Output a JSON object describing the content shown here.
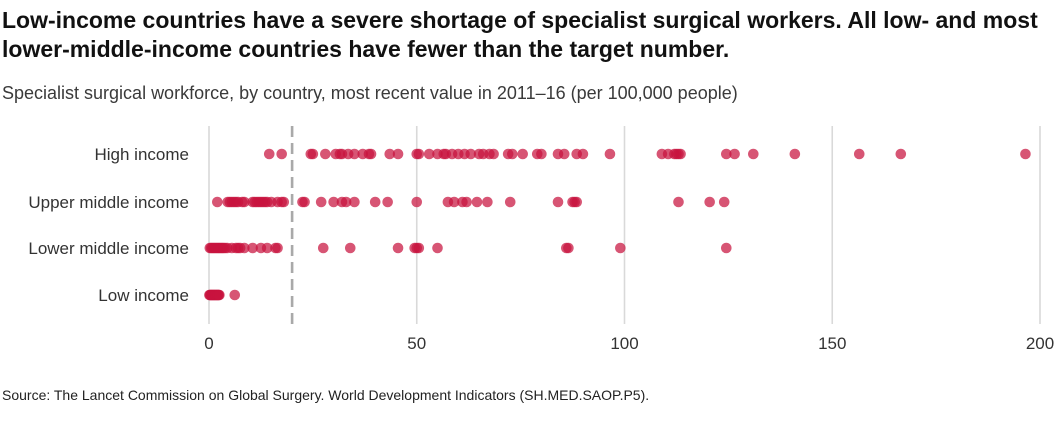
{
  "title": "Low-income countries have a severe shortage of specialist surgical workers. All low- and most lower-middle-income countries have fewer than the target number.",
  "subtitle": "Specialist surgical workforce, by country, most recent value in 2011–16 (per 100,000 people)",
  "source": "Source: The Lancet Commission on Global Surgery. World Development Indicators (SH.MED.SAOP.P5).",
  "colors": {
    "dot": "#c8143f",
    "grid": "#d9d9d9",
    "target_line": "#a9a9a9",
    "axis_text": "#333333"
  },
  "chart_data": {
    "type": "scatter",
    "title": "",
    "xlabel": "",
    "ylabel": "",
    "xlim": [
      0,
      200
    ],
    "x_ticks": [
      0,
      50,
      100,
      150,
      200
    ],
    "grid": true,
    "target_line": 20,
    "categories": [
      "High income",
      "Upper middle income",
      "Lower middle income",
      "Low income"
    ],
    "series": [
      {
        "category": "High income",
        "values": [
          14.5,
          17.5,
          24.5,
          25,
          28,
          30.5,
          31.5,
          32,
          33.5,
          35,
          37,
          38.5,
          39,
          43.5,
          45.5,
          50,
          50.5,
          53,
          55,
          56.5,
          57,
          58.5,
          60,
          61.5,
          63,
          65,
          66,
          67.5,
          68.5,
          72,
          73,
          75.5,
          79,
          80,
          84,
          85.5,
          88.5,
          90,
          96.5,
          109,
          110.5,
          112,
          112.5,
          113,
          113.5,
          124.5,
          126.5,
          131,
          141,
          156.5,
          166.5,
          196.5
        ]
      },
      {
        "category": "Upper middle income",
        "values": [
          2,
          4.5,
          5,
          5.5,
          6,
          6.5,
          7,
          8,
          8.5,
          10.5,
          11,
          11.5,
          12,
          12.5,
          13,
          13.5,
          14,
          15,
          16.5,
          17.5,
          18,
          22.5,
          23,
          27,
          30,
          32,
          33,
          35,
          40,
          43,
          50,
          57.5,
          59,
          61,
          62,
          64.5,
          67,
          72.5,
          84,
          87.5,
          88,
          88.5,
          113,
          120.5,
          124
        ]
      },
      {
        "category": "Lower middle income",
        "values": [
          0.2,
          0.5,
          0.8,
          1.1,
          1.4,
          1.7,
          2,
          2.3,
          2.6,
          2.9,
          3.2,
          3.5,
          3.9,
          4.4,
          5.5,
          6.5,
          7,
          7.5,
          8.5,
          10.5,
          12.5,
          14,
          16,
          16.5,
          27.5,
          34,
          45.5,
          49.5,
          50,
          50.5,
          55,
          86,
          86.5,
          99,
          124.5
        ]
      },
      {
        "category": "Low income",
        "values": [
          0.1,
          0.25,
          0.4,
          0.55,
          0.7,
          0.85,
          1,
          1.15,
          1.3,
          1.45,
          1.6,
          1.75,
          1.9,
          2.05,
          2.2,
          2.35,
          2.5,
          6.2
        ]
      }
    ]
  }
}
